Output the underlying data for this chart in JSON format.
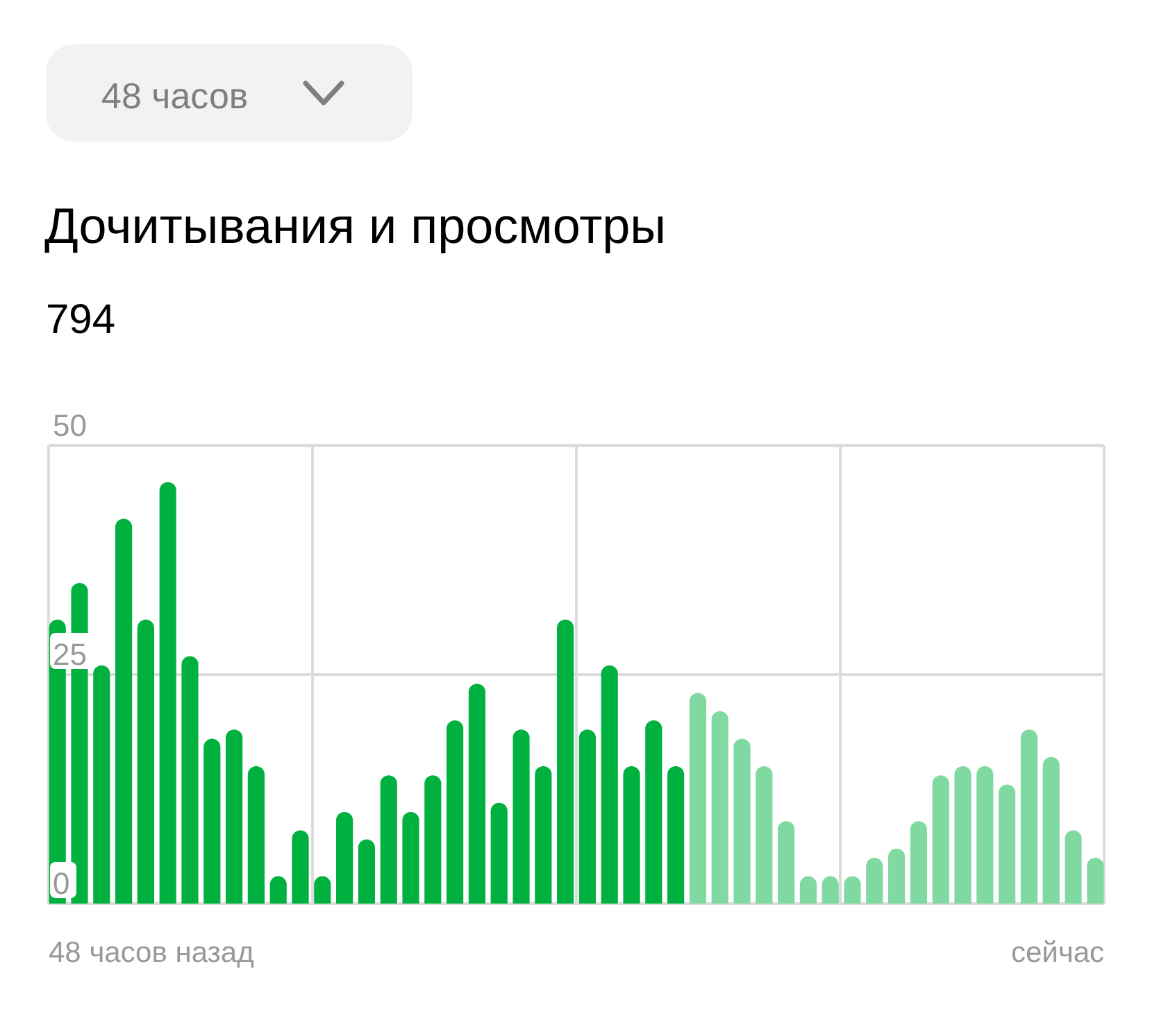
{
  "chart_data": {
    "type": "bar",
    "title": "Дочитывания и просмотры",
    "subtitle": "794",
    "annotations": [
      "48 часов",
      "48 часов назад",
      "сейчас"
    ],
    "categories": [
      null,
      null,
      null,
      null,
      null,
      null,
      null,
      null,
      null,
      null,
      null,
      null,
      null,
      null,
      null,
      null,
      null,
      null,
      null,
      null,
      null,
      null,
      null,
      null,
      null,
      null,
      null,
      null,
      null,
      null,
      null,
      null,
      null,
      null,
      null,
      null,
      null,
      null,
      null,
      null,
      null,
      null,
      null,
      null,
      null,
      null,
      null,
      null
    ],
    "values": [
      31,
      35,
      26,
      42,
      31,
      46,
      27,
      18,
      19,
      15,
      3,
      8,
      3,
      10,
      7,
      14,
      10,
      14,
      20,
      24,
      11,
      19,
      15,
      31,
      19,
      26,
      15,
      20,
      15,
      23,
      21,
      18,
      15,
      9,
      3,
      3,
      3,
      5,
      6,
      9,
      14,
      15,
      15,
      13,
      19,
      16,
      8,
      5
    ],
    "colors": [
      "#00b140",
      "#00b140",
      "#00b140",
      "#00b140",
      "#00b140",
      "#00b140",
      "#00b140",
      "#00b140",
      "#00b140",
      "#00b140",
      "#00b140",
      "#00b140",
      "#00b140",
      "#00b140",
      "#00b140",
      "#00b140",
      "#00b140",
      "#00b140",
      "#00b140",
      "#00b140",
      "#00b140",
      "#00b140",
      "#00b140",
      "#00b140",
      "#00b140",
      "#00b140",
      "#00b140",
      "#00b140",
      "#00b140",
      "#80d9a0",
      "#80d9a0",
      "#80d9a0",
      "#80d9a0",
      "#80d9a0",
      "#80d9a0",
      "#80d9a0",
      "#80d9a0",
      "#80d9a0",
      "#80d9a0",
      "#80d9a0",
      "#80d9a0",
      "#80d9a0",
      "#80d9a0",
      "#80d9a0",
      "#80d9a0",
      "#80d9a0",
      "#80d9a0",
      "#80d9a0"
    ],
    "ylim": [
      0,
      50
    ],
    "yticks": [
      0,
      25,
      50
    ],
    "grid": true
  }
}
